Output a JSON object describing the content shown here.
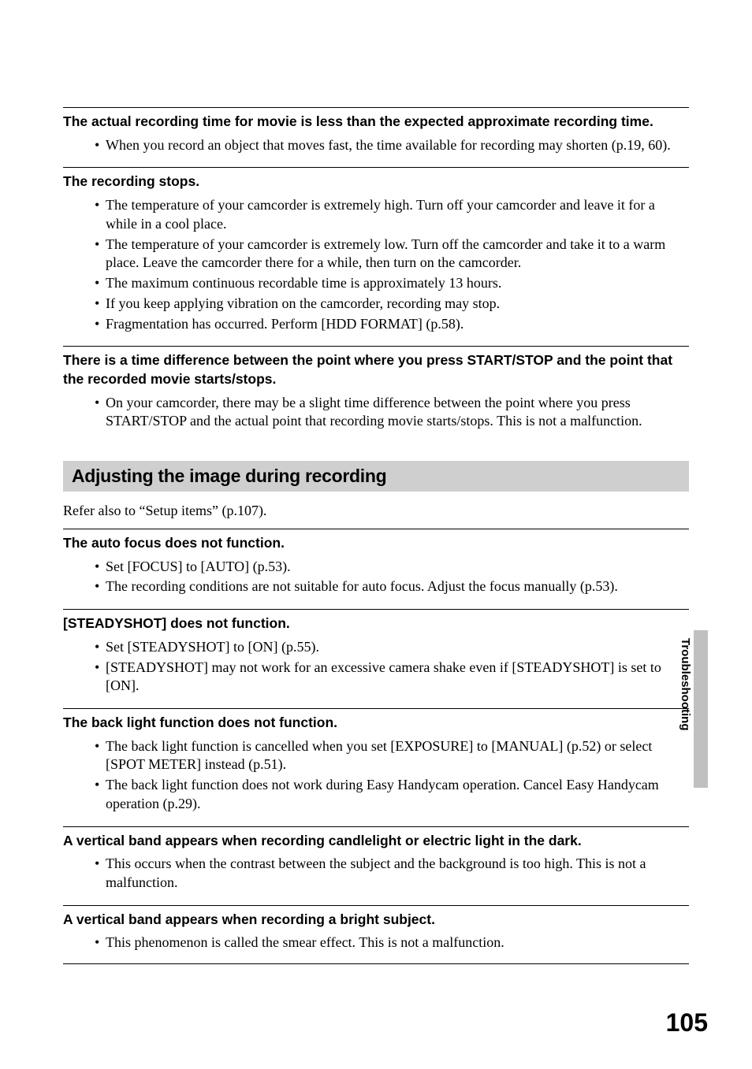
{
  "issues_top": [
    {
      "heading": "The actual recording time for movie is less than the expected approximate recording time.",
      "bullets": [
        "When you record an object that moves fast, the time available for recording may shorten (p.19, 60)."
      ]
    },
    {
      "heading": "The recording stops.",
      "bullets": [
        "The temperature of your camcorder is extremely high. Turn off your camcorder and leave it for a while in a cool place.",
        "The temperature of your camcorder is extremely low. Turn off the camcorder and take it to a warm place. Leave the camcorder there for a while, then turn on the camcorder.",
        "The maximum continuous recordable time is approximately 13 hours.",
        "If you keep applying vibration on the camcorder, recording may stop.",
        "Fragmentation has occurred. Perform [HDD FORMAT] (p.58)."
      ]
    },
    {
      "heading": "There is a time difference between the point where you press START/STOP and the point that the recorded movie starts/stops.",
      "bullets": [
        "On your camcorder, there may be a slight time difference between the point where you press START/STOP and the actual point that recording movie starts/stops. This is not a malfunction."
      ]
    }
  ],
  "section_title": "Adjusting the image during recording",
  "intro": "Refer also to “Setup items” (p.107).",
  "issues_bottom": [
    {
      "heading": "The auto focus does not function.",
      "bullets": [
        "Set [FOCUS] to [AUTO] (p.53).",
        "The recording conditions are not suitable for auto focus. Adjust the focus manually (p.53)."
      ]
    },
    {
      "heading": "[STEADYSHOT] does not function.",
      "bullets": [
        "Set [STEADYSHOT] to [ON] (p.55).",
        "[STEADYSHOT] may not work for an excessive camera shake even if [STEADYSHOT] is set to [ON]."
      ]
    },
    {
      "heading": "The back light function does not function.",
      "bullets": [
        "The back light function is cancelled when you set [EXPOSURE] to [MANUAL] (p.52) or select [SPOT METER] instead (p.51).",
        "The back light function does not work during Easy Handycam operation. Cancel Easy Handycam operation (p.29)."
      ]
    },
    {
      "heading": "A vertical band appears when recording candlelight or electric light in the dark.",
      "bullets": [
        "This occurs when the contrast between the subject and the background is too high. This is not a malfunction."
      ]
    },
    {
      "heading": "A vertical band appears when recording a bright subject.",
      "bullets": [
        "This phenomenon is called the smear effect. This is not a malfunction."
      ]
    }
  ],
  "side_label": "Troubleshooting",
  "page_number": "105"
}
